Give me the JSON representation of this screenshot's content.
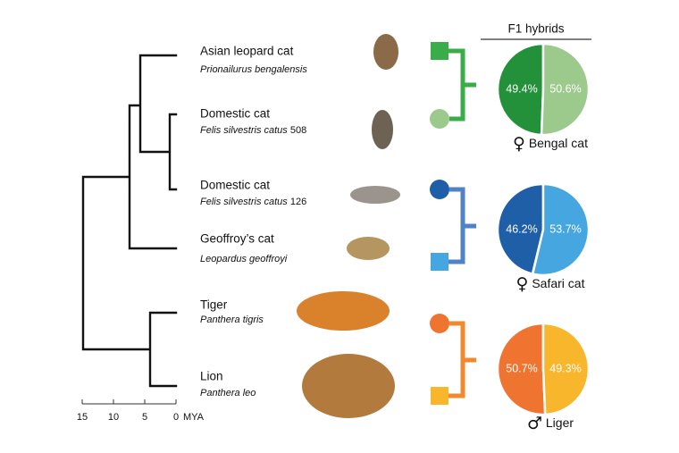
{
  "tree": {
    "taxa": [
      {
        "common": "Asian leopard cat",
        "scientific": "Prionailurus bengalensis"
      },
      {
        "common": "Domestic cat",
        "scientific": "Felis silvestris catus",
        "id": "508"
      },
      {
        "common": "Domestic cat",
        "scientific": "Felis silvestris catus",
        "id": "126"
      },
      {
        "common": "Geoffroy’s cat",
        "scientific": "Leopardus geoffroyi"
      },
      {
        "common": "Tiger",
        "scientific": "Panthera tigris"
      },
      {
        "common": "Lion",
        "scientific": "Panthera leo"
      }
    ],
    "axis": {
      "ticks": [
        15,
        10,
        5,
        0
      ],
      "unit": "MYA"
    }
  },
  "hybrids": {
    "title": "F1 hybrids",
    "crosses": [
      {
        "name": "Bengal cat",
        "sex": "♀",
        "values": [
          49.4,
          50.6
        ],
        "value_labels": [
          "49.4%",
          "50.6%"
        ],
        "colors": [
          "#23913a",
          "#9cc98c"
        ],
        "bracket_color": "#3aac4a"
      },
      {
        "name": "Safari cat",
        "sex": "♀",
        "values": [
          46.2,
          53.7
        ],
        "value_labels": [
          "46.2%",
          "53.7%"
        ],
        "colors": [
          "#1f5fa8",
          "#45a6e0"
        ],
        "bracket_color": "#4f82c6"
      },
      {
        "name": "Liger",
        "sex": "♂",
        "values": [
          50.7,
          49.3
        ],
        "value_labels": [
          "50.7%",
          "49.3%"
        ],
        "colors": [
          "#ee7430",
          "#f7b62b"
        ],
        "bracket_color": "#f18a2e"
      }
    ]
  }
}
